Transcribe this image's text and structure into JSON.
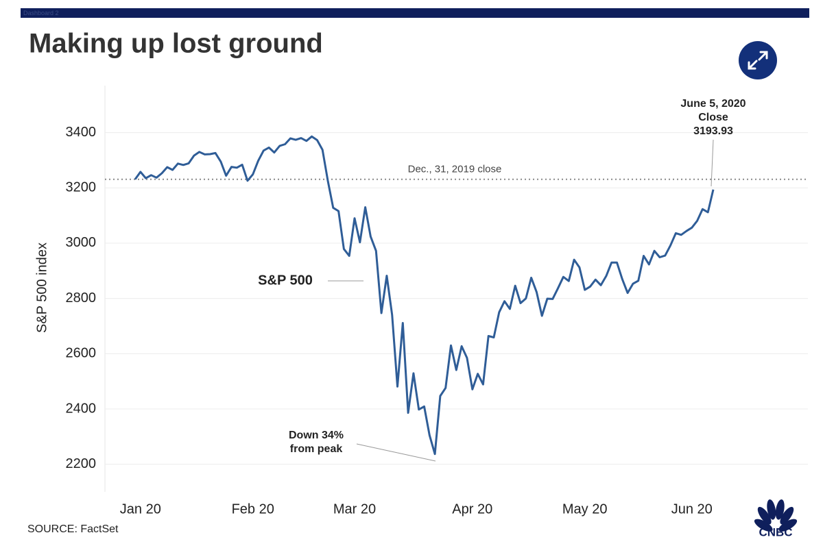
{
  "dashboard_label": "Dashboard 2",
  "chart_data": {
    "type": "line",
    "title": "Making up lost ground",
    "y_label": "S&P 500 index",
    "source": "SOURCE: FactSet",
    "logo": "CNBC",
    "categories": [
      null,
      "Jan 20",
      null,
      null,
      null,
      null,
      null,
      null,
      null,
      null,
      null,
      null,
      null,
      null,
      null,
      null,
      null,
      null,
      null,
      null,
      null,
      null,
      "Feb 20",
      null,
      null,
      null,
      null,
      null,
      null,
      null,
      null,
      null,
      null,
      null,
      null,
      null,
      null,
      null,
      null,
      null,
      null,
      "Mar 20",
      null,
      null,
      null,
      null,
      null,
      null,
      null,
      null,
      null,
      null,
      null,
      null,
      null,
      null,
      null,
      null,
      null,
      null,
      null,
      null,
      null,
      "Apr 20",
      null,
      null,
      null,
      null,
      null,
      null,
      null,
      null,
      null,
      null,
      null,
      null,
      null,
      null,
      null,
      null,
      null,
      null,
      null,
      null,
      "May 20",
      null,
      null,
      null,
      null,
      null,
      null,
      null,
      null,
      null,
      null,
      null,
      null,
      null,
      null,
      null,
      null,
      null,
      null,
      null,
      "Jun 20",
      null,
      null,
      null,
      null
    ],
    "series": [
      {
        "name": "S&P 500",
        "color": "#2f5d97",
        "values": [
          3231,
          3258,
          3235,
          3246,
          3237,
          3253,
          3275,
          3265,
          3288,
          3283,
          3289,
          3317,
          3330,
          3321,
          3322,
          3326,
          3295,
          3244,
          3276,
          3273,
          3284,
          3226,
          3249,
          3298,
          3335,
          3346,
          3328,
          3352,
          3358,
          3379,
          3374,
          3380,
          3370,
          3386,
          3373,
          3338,
          3226,
          3128,
          3116,
          2979,
          2954,
          3090,
          3003,
          3130,
          3024,
          2972,
          2747,
          2882,
          2741,
          2481,
          2711,
          2386,
          2529,
          2398,
          2409,
          2305,
          2237,
          2447,
          2476,
          2630,
          2541,
          2627,
          2585,
          2471,
          2527,
          2489,
          2664,
          2659,
          2750,
          2790,
          2762,
          2846,
          2783,
          2800,
          2875,
          2823,
          2737,
          2799,
          2798,
          2837,
          2878,
          2863,
          2940,
          2912,
          2831,
          2843,
          2868,
          2848,
          2881,
          2930,
          2930,
          2870,
          2820,
          2853,
          2864,
          2954,
          2923,
          2972,
          2949,
          2955,
          2992,
          3036,
          3030,
          3044,
          3056,
          3081,
          3123,
          3112,
          3193.93
        ]
      }
    ],
    "ylim": [
      2100,
      3570
    ],
    "yticks": [
      2200,
      2400,
      2600,
      2800,
      3000,
      3200,
      3400
    ],
    "grid": true,
    "reference_line": {
      "value": 3231,
      "label": "Dec., 31, 2019 close"
    },
    "annotations": [
      {
        "lines": [
          "S&P 500"
        ]
      },
      {
        "lines": [
          "Down 34%",
          "from peak"
        ]
      },
      {
        "lines": [
          "June 5, 2020",
          "Close",
          "3193.93"
        ]
      }
    ]
  }
}
